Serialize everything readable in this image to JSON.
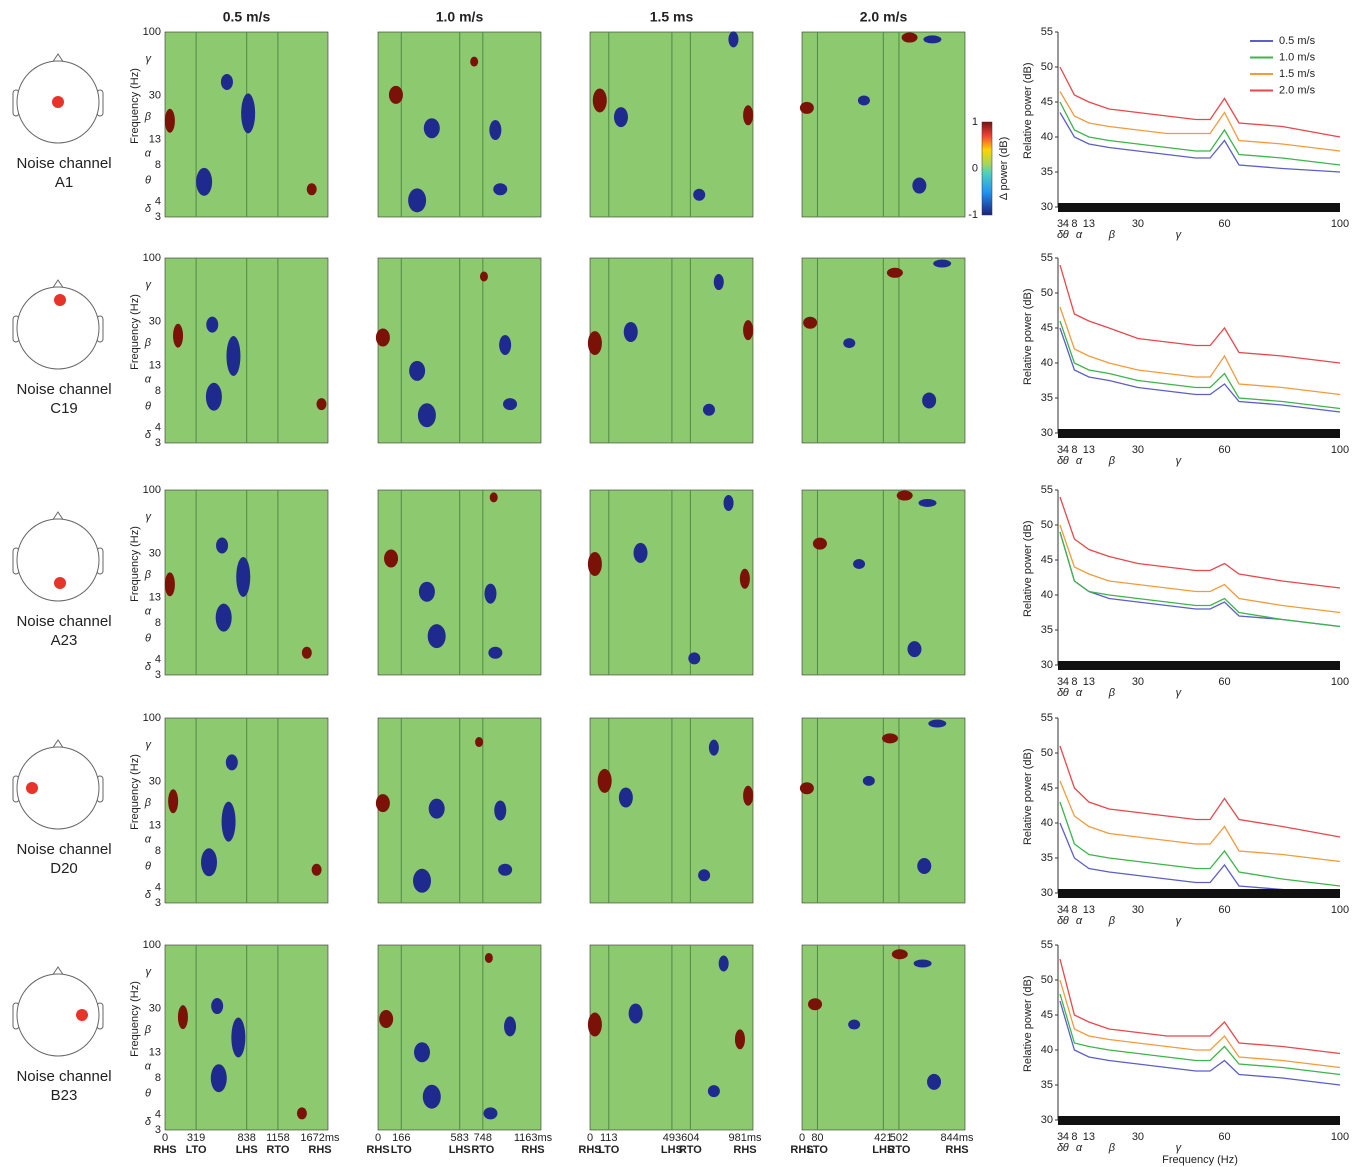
{
  "column_titles": [
    "0.5 m/s",
    "1.0 m/s",
    "1.5 ms",
    "2.0 m/s"
  ],
  "rows": [
    {
      "label": "Noise channel",
      "channel": "A1"
    },
    {
      "label": "Noise channel",
      "channel": "C19"
    },
    {
      "label": "Noise channel",
      "channel": "A23"
    },
    {
      "label": "Noise channel",
      "channel": "D20"
    },
    {
      "label": "Noise channel",
      "channel": "B23"
    }
  ],
  "heatmap": {
    "ylabel": "Frequency (Hz)",
    "ylim": [
      3,
      100
    ],
    "log_scale": true,
    "yticks": [
      3,
      4,
      8,
      13,
      30,
      100
    ],
    "bands": [
      {
        "value": 3.5,
        "label": "δ"
      },
      {
        "value": 6,
        "label": "θ"
      },
      {
        "value": 10,
        "label": "α"
      },
      {
        "value": 20,
        "label": "β"
      },
      {
        "value": 60,
        "label": "γ"
      }
    ],
    "background": "#8dc96f",
    "event_line_color": "#4f8a45"
  },
  "colorbar": {
    "label": "Δ power (dB)",
    "lim": [
      -1,
      1
    ],
    "ticks": [
      -1,
      0,
      1
    ]
  },
  "gait": [
    {
      "xlim": [
        0,
        1672
      ],
      "xticks": [
        0,
        319,
        838,
        1158,
        {
          "value": 1672,
          "label": "1672ms"
        }
      ],
      "events": [
        "RHS",
        "LTO",
        "LHS",
        "RTO",
        "RHS"
      ]
    },
    {
      "xlim": [
        0,
        1163
      ],
      "xticks": [
        0,
        166,
        583,
        748,
        {
          "value": 1163,
          "label": "1163ms"
        }
      ],
      "events": [
        "RHS",
        "LTO",
        "LHS",
        "RTO",
        "RHS"
      ]
    },
    {
      "xlim": [
        0,
        981
      ],
      "xticks": [
        0,
        113,
        493,
        604,
        {
          "value": 981,
          "label": "981ms"
        }
      ],
      "events": [
        "RHS",
        "LTO",
        "LHS",
        "RTO",
        "RHS"
      ]
    },
    {
      "xlim": [
        0,
        844
      ],
      "xticks": [
        0,
        80,
        421,
        502,
        {
          "value": 844,
          "label": "844ms"
        }
      ],
      "events": [
        "RHS",
        "LTO",
        "LHS",
        "RTO",
        "RHS"
      ]
    }
  ],
  "spectra": {
    "type": "line",
    "ylabel": "Relative power (dB)",
    "xlabel": "Frequency (Hz)",
    "xlim": [
      3,
      100
    ],
    "ylim": [
      30,
      55
    ],
    "xticks": [
      3,
      4,
      8,
      13,
      30,
      60,
      100
    ],
    "yticks": [
      30,
      35,
      40,
      45,
      50,
      55
    ],
    "bands": [
      {
        "value": 3,
        "label": "δ"
      },
      {
        "value": 5,
        "label": "θ"
      },
      {
        "value": 9.6,
        "label": "α"
      },
      {
        "value": 21,
        "label": "β"
      },
      {
        "value": 44,
        "label": "γ"
      }
    ],
    "x": [
      3,
      8,
      13,
      20,
      30,
      40,
      50,
      55,
      60,
      65,
      80,
      100
    ],
    "series": [
      {
        "name": "0.5 m/s",
        "color": "#5b5fc7"
      },
      {
        "name": "1.0 m/s",
        "color": "#3db54a"
      },
      {
        "name": "1.5 m/s",
        "color": "#f39b3c"
      },
      {
        "name": "2.0 m/s",
        "color": "#e8474b"
      }
    ],
    "data": [
      [
        [
          43.5,
          40,
          39,
          38.5,
          38,
          37.5,
          37,
          37,
          39.5,
          36,
          35.5,
          35
        ],
        [
          45,
          41,
          40,
          39.5,
          39,
          38.5,
          38,
          38,
          41,
          37.5,
          37,
          36
        ],
        [
          46.5,
          43,
          42,
          41.5,
          41,
          40.5,
          40.5,
          40.5,
          43.5,
          39.5,
          39,
          38
        ],
        [
          50,
          46,
          45,
          44,
          43.5,
          43,
          42.5,
          42.5,
          45.5,
          42,
          41.5,
          40
        ]
      ],
      [
        [
          45,
          39,
          38,
          37.5,
          36.5,
          36,
          35.5,
          35.5,
          37,
          34.5,
          34,
          33
        ],
        [
          46,
          40,
          39,
          38.5,
          37.5,
          37,
          36.5,
          36.5,
          38.5,
          35,
          34.5,
          33.5
        ],
        [
          48,
          42,
          41,
          40,
          39,
          38.5,
          38,
          38,
          41,
          37,
          36.5,
          35.5
        ],
        [
          54,
          47,
          46,
          45,
          43.5,
          43,
          42.5,
          42.5,
          45,
          41.5,
          41,
          40
        ]
      ],
      [
        [
          49,
          42,
          40.5,
          39.5,
          39,
          38.5,
          38,
          38,
          39,
          37,
          36.5,
          35.5
        ],
        [
          49,
          42,
          40.5,
          40,
          39.5,
          39,
          38.5,
          38.5,
          39.5,
          37.5,
          36.5,
          35.5
        ],
        [
          50,
          44,
          43,
          42,
          41.5,
          41,
          40.5,
          40.5,
          41.5,
          39.5,
          38.5,
          37.5
        ],
        [
          54,
          48,
          46.5,
          45.5,
          44.5,
          44,
          43.5,
          43.5,
          44.5,
          43,
          42,
          41
        ]
      ],
      [
        [
          40,
          35,
          33.5,
          33,
          32.5,
          32,
          31.5,
          31.5,
          34,
          31,
          30.5,
          30
        ],
        [
          43,
          37,
          35.5,
          35,
          34.5,
          34,
          33.5,
          33.5,
          36,
          33,
          32,
          31
        ],
        [
          46,
          41,
          39.5,
          38.5,
          38,
          37.5,
          37,
          37,
          39.5,
          36,
          35.5,
          34.5
        ],
        [
          51,
          45,
          43,
          42,
          41.5,
          41,
          40.5,
          40.5,
          43.5,
          40.5,
          39.5,
          38
        ]
      ],
      [
        [
          47,
          40,
          39,
          38.5,
          38,
          37.5,
          37,
          37,
          38.5,
          36.5,
          36,
          35
        ],
        [
          48,
          41,
          40.5,
          40,
          39.5,
          39,
          38.5,
          38.5,
          40.5,
          38,
          37.5,
          36.5
        ],
        [
          50,
          43,
          42,
          41.5,
          41,
          40.5,
          40,
          40,
          42,
          39,
          38.5,
          37.5
        ],
        [
          53,
          45,
          44,
          43,
          42.5,
          42,
          42,
          42,
          44,
          41,
          40.5,
          39.5
        ]
      ]
    ]
  }
}
